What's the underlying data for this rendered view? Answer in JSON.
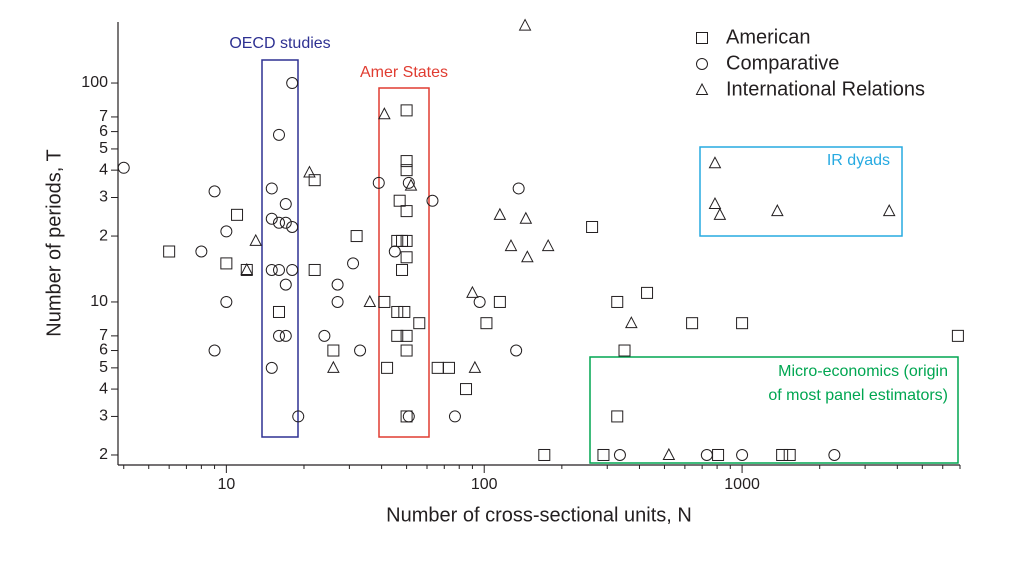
{
  "chart_data": {
    "type": "scatter",
    "x_label": "Number of cross-sectional units, N",
    "y_label": "Number of periods, T",
    "xscale": "log",
    "yscale": "log",
    "xlim": [
      3.8,
      7000
    ],
    "ylim": [
      1.8,
      190
    ],
    "xticks": [
      10,
      100,
      1000
    ],
    "xminorticks": [
      4,
      5,
      6,
      7,
      8,
      9,
      20,
      30,
      40,
      50,
      60,
      70,
      80,
      90,
      200,
      300,
      400,
      500,
      600,
      700,
      800,
      900,
      2000,
      3000,
      4000,
      5000,
      6000,
      7000
    ],
    "yticks": [
      2,
      3,
      4,
      5,
      6,
      7,
      10,
      {
        "value": 20,
        "label": "2"
      },
      {
        "value": 30,
        "label": "3"
      },
      {
        "value": 40,
        "label": "4"
      },
      {
        "value": 50,
        "label": "5"
      },
      {
        "value": 60,
        "label": "6"
      },
      {
        "value": 70,
        "label": "7"
      },
      100
    ],
    "legend_position": "top-right",
    "series": [
      {
        "name": "American",
        "marker": "square",
        "color": "#231f20",
        "x": [
          6,
          11,
          10,
          12,
          22,
          22,
          32,
          26,
          16,
          42,
          41,
          50,
          50,
          50,
          47,
          50,
          46,
          48,
          50,
          48,
          50,
          46,
          49,
          46,
          50,
          50,
          56,
          50,
          66,
          73,
          85,
          102,
          115,
          171,
          262,
          290,
          328,
          328,
          350,
          428,
          640,
          807,
          1000,
          1430,
          1530,
          6870
        ],
        "values": [
          17,
          25,
          15,
          14,
          14,
          36,
          20,
          6,
          9,
          5,
          10,
          75,
          44,
          40,
          29,
          26,
          19,
          19,
          19,
          14,
          16,
          9,
          9,
          7,
          7,
          6,
          8,
          3,
          5,
          5,
          4,
          8,
          10,
          2,
          22,
          2,
          10,
          3,
          6,
          11,
          8,
          2,
          8,
          2,
          2,
          7
        ]
      },
      {
        "name": "Comparative",
        "marker": "circle",
        "color": "#231f20",
        "x": [
          4,
          9,
          8,
          10,
          10,
          9,
          18,
          16,
          15,
          15,
          16,
          17,
          17,
          18,
          15,
          16,
          18,
          17,
          16,
          17,
          15,
          19,
          27,
          27,
          31,
          24,
          33,
          39,
          45,
          51,
          51,
          63,
          77,
          96,
          133,
          136,
          336,
          730,
          1000,
          2280
        ],
        "values": [
          41,
          32,
          17,
          21,
          10,
          6,
          100,
          58,
          33,
          24,
          23,
          28,
          23,
          22,
          14,
          14,
          14,
          12,
          7,
          7,
          5,
          3,
          12,
          10,
          15,
          7,
          6,
          35,
          17,
          35,
          3,
          29,
          3,
          10,
          6,
          33,
          2,
          2,
          2,
          2
        ]
      },
      {
        "name": "International Relations",
        "marker": "triangle",
        "color": "#231f20",
        "x": [
          13,
          12,
          21,
          26,
          36,
          41,
          52,
          144,
          90,
          92,
          115,
          127,
          145,
          147,
          177,
          372,
          520,
          785,
          785,
          820,
          1370,
          3720
        ],
        "values": [
          19,
          14,
          39,
          5,
          10,
          72,
          34,
          183,
          11,
          5,
          25,
          18,
          24,
          16,
          18,
          8,
          2,
          43,
          28,
          25,
          26,
          26
        ]
      }
    ],
    "annotations": [
      {
        "lines": [
          "OECD studies"
        ],
        "color": "#2e3192"
      },
      {
        "lines": [
          "Amer States"
        ],
        "color": "#e03c31"
      },
      {
        "lines": [
          "IR dyads"
        ],
        "color": "#27aae1"
      },
      {
        "lines": [
          "Micro-economics (origin",
          "of most panel estimators)"
        ],
        "color": "#00a651"
      }
    ]
  }
}
